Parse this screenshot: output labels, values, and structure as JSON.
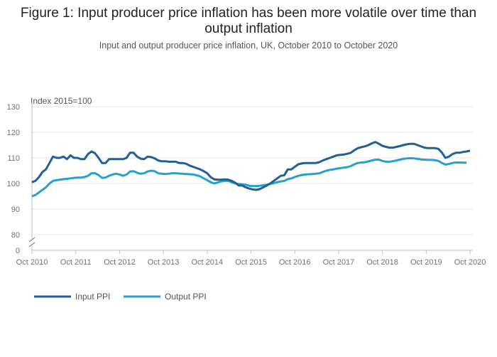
{
  "title": "Figure 1: Input producer price inflation has been more volatile over time than output inflation",
  "subtitle": "Input and output producer price inflation, UK, October 2010 to October 2020",
  "chart_data": {
    "type": "line",
    "unit_label": "Index 2015=100",
    "x_start": "Oct 2010",
    "x_end": "Oct 2020",
    "x_tick_labels": [
      "Oct 2010",
      "Oct 2011",
      "Oct 2012",
      "Oct 2013",
      "Oct 2014",
      "Oct 2015",
      "Oct 2016",
      "Oct 2017",
      "Oct 2018",
      "Oct 2019",
      "Oct 2020"
    ],
    "y_ticks": [
      80,
      90,
      100,
      110,
      120,
      130
    ],
    "y_zero_label": "0",
    "ylim": [
      80,
      130
    ],
    "axis_break": true,
    "grid": true,
    "legend_position": "bottom-left",
    "series": [
      {
        "name": "Input PPI",
        "color": "#206095",
        "values": [
          100.5,
          101,
          102.5,
          104.5,
          105.5,
          108,
          110.5,
          110,
          110,
          110.5,
          109.5,
          111,
          110,
          110,
          109.5,
          109.5,
          111.5,
          112.5,
          111.8,
          110,
          108,
          108,
          109.5,
          109.5,
          109.5,
          109.5,
          109.5,
          110,
          112,
          112,
          110.5,
          109.7,
          109.5,
          110.5,
          110.3,
          109.8,
          109,
          108.7,
          108.7,
          108.5,
          108.5,
          108.5,
          108,
          108,
          107.7,
          107,
          106.5,
          106,
          105.5,
          104.8,
          104,
          102.5,
          101.6,
          101.5,
          101.5,
          101.6,
          101.5,
          101,
          100.3,
          99.2,
          99.2,
          98.5,
          98,
          97.7,
          97.5,
          97.8,
          98.5,
          99.2,
          100,
          101,
          102,
          103,
          103.2,
          105.5,
          105.5,
          106.5,
          107.5,
          107.8,
          108,
          108,
          108,
          108,
          108.3,
          109,
          109.5,
          110,
          110.5,
          111,
          111.2,
          111.3,
          111.6,
          112,
          113,
          113.8,
          114.2,
          114.5,
          115,
          115.7,
          116.2,
          115.5,
          114.7,
          114.3,
          114,
          114,
          114.3,
          114.6,
          115,
          115.3,
          115.5,
          115.5,
          115,
          114.5,
          114,
          113.8,
          113.8,
          113.8,
          113.5,
          112,
          110,
          110.5,
          111.5,
          112,
          112,
          112.3,
          112.5,
          112.8
        ]
      },
      {
        "name": "Output PPI",
        "color": "#27a0cc",
        "values": [
          95,
          95.5,
          96.5,
          97.5,
          98.5,
          100,
          101,
          101.3,
          101.5,
          101.7,
          101.8,
          102,
          102.2,
          102.3,
          102.3,
          102.5,
          103,
          104,
          104,
          103.3,
          102.2,
          102.3,
          103,
          103.5,
          103.8,
          103.5,
          103,
          103.5,
          104.7,
          104.8,
          104.2,
          103.8,
          104,
          104.7,
          105,
          104.8,
          104,
          103.8,
          103.7,
          103.8,
          104,
          104,
          103.9,
          103.8,
          103.7,
          103.6,
          103.5,
          103.2,
          102.8,
          102,
          101.3,
          100.5,
          100,
          100.4,
          100.8,
          101,
          101,
          100.5,
          100,
          99.8,
          99.7,
          99.5,
          99.1,
          99,
          99,
          99.1,
          99.3,
          99.5,
          99.8,
          100.1,
          100.5,
          100.8,
          101,
          101.7,
          102,
          102.5,
          103,
          103.3,
          103.5,
          103.6,
          103.7,
          103.8,
          104,
          104.5,
          105,
          105.3,
          105.5,
          105.8,
          106,
          106.2,
          106.4,
          106.8,
          107.5,
          108,
          108.2,
          108.3,
          108.6,
          109,
          109.3,
          109.3,
          108.8,
          108.5,
          108.5,
          108.7,
          109,
          109.3,
          109.6,
          109.8,
          109.9,
          109.8,
          109.6,
          109.4,
          109.3,
          109.2,
          109.2,
          109.1,
          108.8,
          108,
          107.4,
          107.6,
          108,
          108.2,
          108.2,
          108.1,
          108.1
        ]
      }
    ]
  }
}
